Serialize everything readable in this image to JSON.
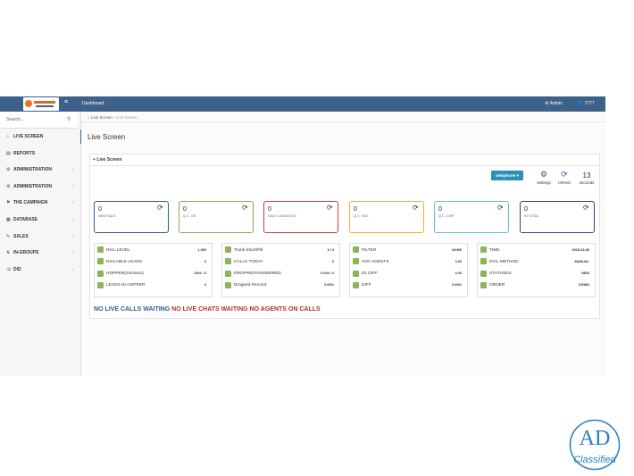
{
  "topbar": {
    "menu": "Dashboard",
    "user": "Admin",
    "extension": "7777"
  },
  "sidebar": {
    "search": "Search...",
    "items": [
      "LIVE SCREEN",
      "REPORTS",
      "ADMINISTRATION",
      "ADMINISTRATION",
      "THE CAMPAIGN",
      "DATABASE",
      "SALES",
      "IN-GROUPS",
      "DID"
    ]
  },
  "breadcrumb": [
    "Live Screen",
    "Live Screen"
  ],
  "page_title": "Live Screen",
  "panel": {
    "title": "Live Screen",
    "button": "webphone",
    "settings": "settings",
    "refresh": "refresh",
    "seconds_count": "13",
    "seconds": "seconds",
    "cards": [
      {
        "value": "0",
        "label": "NEW SALE",
        "color": "#2c5d8f"
      },
      {
        "value": "0",
        "label": "Q.C. OK",
        "color": "#7fae4a"
      },
      {
        "value": "0",
        "label": "SALE CANCELED",
        "color": "#d43a3a"
      },
      {
        "value": "0",
        "label": "Q.C. W.B.",
        "color": "#efb02e"
      },
      {
        "value": "0",
        "label": "Q.C. CMP",
        "color": "#5bc0de"
      },
      {
        "value": "0",
        "label": "IN TOTAL",
        "color": "#3b3b8c"
      }
    ],
    "stats": [
      [
        [
          "DIAL LEVEL",
          "1.500"
        ],
        [
          "DIALABLE LEADS",
          "0"
        ],
        [
          "HOPPER(min/auto)",
          "1001 / 0"
        ],
        [
          "LEADS IN HOPPER",
          "0"
        ]
      ],
      [
        [
          "Trunk Short/Fill",
          "0 / 0"
        ],
        [
          "CALLS TODAY",
          "0"
        ],
        [
          "DROPPED/ANSWERED",
          "0.000 / 0"
        ],
        [
          "Dropped Percent",
          "0.00%"
        ]
      ],
      [
        [
          "FILTER",
          "NONE"
        ],
        [
          "AVG AGENTS",
          "0.00"
        ],
        [
          "DL DIFF",
          "0.00"
        ],
        [
          "DIFF",
          "0.00%"
        ]
      ],
      [
        [
          "TIME",
          "2025-03-08"
        ],
        [
          "DIAL METHOD",
          "MANUAL"
        ],
        [
          "STATUSES",
          "NEW"
        ],
        [
          "ORDER",
          "DOWN"
        ]
      ]
    ],
    "status": [
      {
        "text": "NO LIVE CALLS WAITING",
        "color": "#2c5d8f"
      },
      {
        "text": "NO LIVE CHATS WAITING",
        "color": "#b03030"
      },
      {
        "text": "NO AGENTS ON CALLS",
        "color": "#b03030"
      }
    ]
  },
  "watermark": {
    "big": "AD",
    "small": "Classified"
  }
}
